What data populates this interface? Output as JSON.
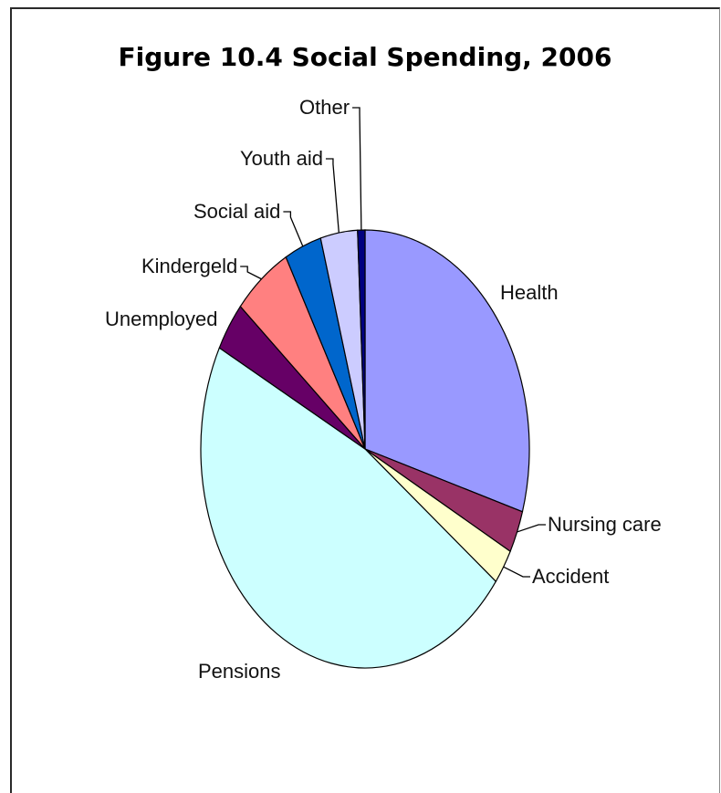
{
  "chart_data": {
    "type": "pie",
    "title": "Figure 10.4 Social Spending, 2006",
    "slices": [
      {
        "label": "Health",
        "value": 28.5,
        "color": "#9999ff"
      },
      {
        "label": "Nursing care",
        "value": 3.0,
        "color": "#993366"
      },
      {
        "label": "Accident",
        "value": 2.5,
        "color": "#ffffcc"
      },
      {
        "label": "Pensions",
        "value": 45.5,
        "color": "#ccffff"
      },
      {
        "label": "Unemployed",
        "value": 3.5,
        "color": "#660066"
      },
      {
        "label": "Kindergeld",
        "value": 5.5,
        "color": "#ff8080"
      },
      {
        "label": "Social aid",
        "value": 3.5,
        "color": "#0066cc"
      },
      {
        "label": "Youth aid",
        "value": 3.5,
        "color": "#ccccff"
      },
      {
        "label": "Other",
        "value": 0.7,
        "color": "#000080"
      }
    ],
    "legend": "none"
  }
}
